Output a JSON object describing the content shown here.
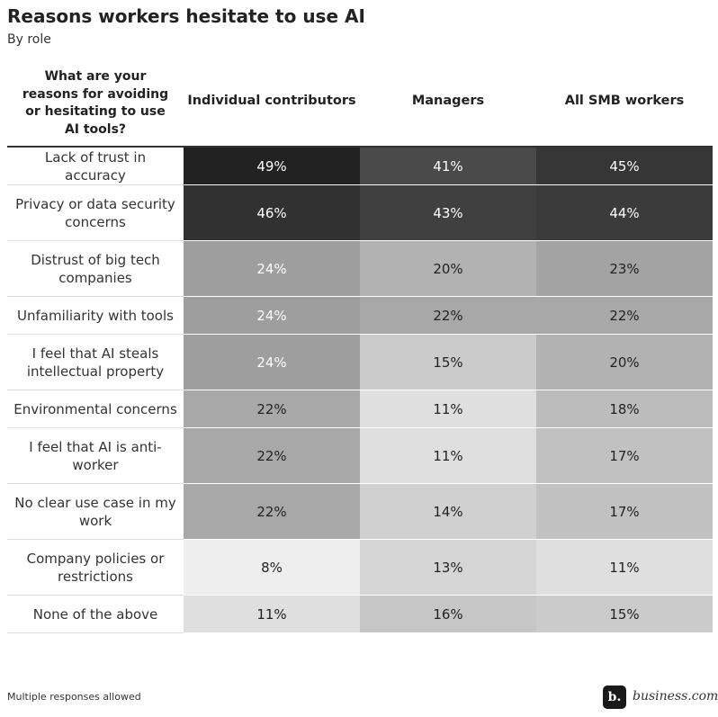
{
  "chart_data": {
    "type": "heatmap",
    "title": "Reasons workers hesitate to use AI",
    "subtitle": "By role",
    "corner_label": "What are your reasons for avoiding or hesitating to use AI tools?",
    "columns": [
      "Individual contributors",
      "Managers",
      "All SMB workers"
    ],
    "rows": [
      "Lack of trust in accuracy",
      "Privacy or data security concerns",
      "Distrust of big tech companies",
      "Unfamiliarity with tools",
      "I feel that AI steals intellectual property",
      "Environmental concerns",
      "I feel that AI is anti-worker",
      "No clear use case in my work",
      "Company policies or restrictions",
      "None of the above"
    ],
    "values": [
      [
        49,
        41,
        45
      ],
      [
        46,
        43,
        44
      ],
      [
        24,
        20,
        23
      ],
      [
        24,
        22,
        22
      ],
      [
        24,
        15,
        20
      ],
      [
        22,
        11,
        18
      ],
      [
        22,
        11,
        17
      ],
      [
        22,
        14,
        17
      ],
      [
        8,
        13,
        11
      ],
      [
        11,
        16,
        15
      ]
    ],
    "value_labels": [
      [
        "49%",
        "41%",
        "45%"
      ],
      [
        "46%",
        "43%",
        "44%"
      ],
      [
        "24%",
        "20%",
        "23%"
      ],
      [
        "24%",
        "22%",
        "22%"
      ],
      [
        "24%",
        "15%",
        "20%"
      ],
      [
        "22%",
        "11%",
        "18%"
      ],
      [
        "22%",
        "11%",
        "17%"
      ],
      [
        "22%",
        "14%",
        "17%"
      ],
      [
        "8%",
        "13%",
        "11%"
      ],
      [
        "11%",
        "16%",
        "15%"
      ]
    ],
    "colors": [
      "#eeeeee",
      "#222222"
    ],
    "note": "Multiple responses allowed",
    "logo_mark": "b.",
    "logo_text": "business.com"
  }
}
